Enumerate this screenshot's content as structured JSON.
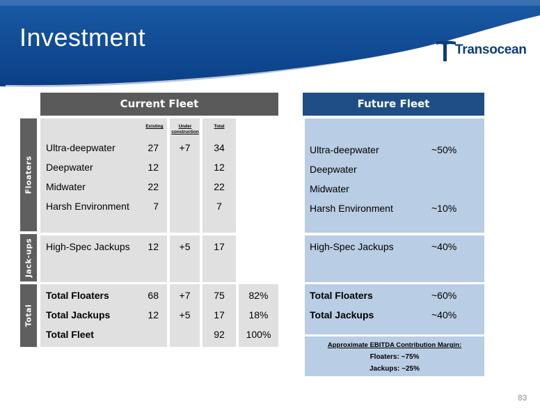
{
  "title": "Investment",
  "logo": {
    "text": "Transocean"
  },
  "current_fleet": {
    "header": "Current Fleet",
    "column_headers": {
      "existing": "Existing",
      "under_construction": "Under construction",
      "total": "Total"
    },
    "side_labels": {
      "floaters": "Floaters",
      "jackups": "Jack-ups",
      "total": "Total"
    },
    "floaters": [
      {
        "name": "Ultra-deepwater",
        "existing": "27",
        "under": "+7",
        "total": "34"
      },
      {
        "name": "Deepwater",
        "existing": "12",
        "under": "",
        "total": "12"
      },
      {
        "name": "Midwater",
        "existing": "22",
        "under": "",
        "total": "22"
      },
      {
        "name": "Harsh Environment",
        "existing": "7",
        "under": "",
        "total": "7"
      }
    ],
    "jackups": [
      {
        "name": "High-Spec Jackups",
        "existing": "12",
        "under": "+5",
        "total": "17"
      }
    ],
    "totals": [
      {
        "name": "Total Floaters",
        "existing": "68",
        "under": "+7",
        "total": "75",
        "pct": "82%"
      },
      {
        "name": "Total Jackups",
        "existing": "12",
        "under": "+5",
        "total": "17",
        "pct": "18%"
      },
      {
        "name": "Total Fleet",
        "existing": "",
        "under": "",
        "total": "92",
        "pct": "100%"
      }
    ]
  },
  "future_fleet": {
    "header": "Future Fleet",
    "floaters": [
      {
        "name": "Ultra-deepwater",
        "pct": "~50%"
      },
      {
        "name": "Deepwater",
        "pct": ""
      },
      {
        "name": "Midwater",
        "pct": ""
      },
      {
        "name": "Harsh Environment",
        "pct": "~10%"
      }
    ],
    "jackups": [
      {
        "name": "High-Spec Jackups",
        "pct": "~40%"
      }
    ],
    "totals": [
      {
        "name": "Total Floaters",
        "pct": "~60%"
      },
      {
        "name": "Total Jackups",
        "pct": "~40%"
      }
    ],
    "ebitda": {
      "heading": "Approximate EBITDA Contribution Margin:",
      "floaters": "Floaters: ~75%",
      "jackups": "Jackups: ~25%"
    }
  },
  "page_number": "83",
  "colors": {
    "banner": "#0d4a93",
    "current_header": "#5a5a5a",
    "future_header": "#1f4e86",
    "gray_cell": "#e0e0e0",
    "blue_cell": "#b9cde4"
  }
}
